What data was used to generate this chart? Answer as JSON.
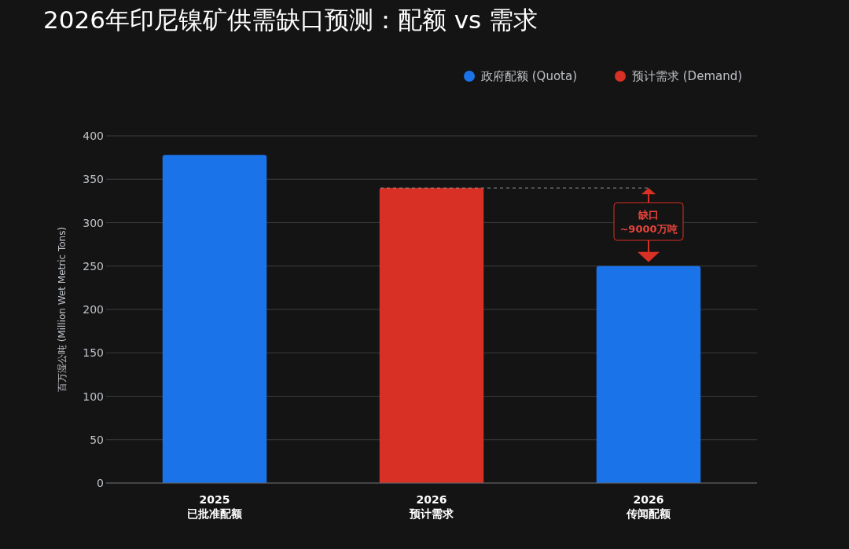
{
  "chart_data": {
    "type": "bar",
    "title": "2026年印尼镍矿供需缺口预测：配额 vs 需求",
    "ylabel": "百万湿公吨 (Million Wet Metric Tons)",
    "categories": [
      "2025\n已批准配额",
      "2026\n预计需求",
      "2026\n传闻配额"
    ],
    "series": [
      {
        "name": "政府配额 (Quota)",
        "color": "#1a73e8",
        "values": [
          378,
          null,
          250
        ]
      },
      {
        "name": "预计需求 (Demand)",
        "color": "#d93025",
        "values": [
          null,
          340,
          null
        ]
      }
    ],
    "ylim": [
      0,
      400
    ],
    "yticks": [
      0,
      50,
      100,
      150,
      200,
      250,
      300,
      350,
      400
    ],
    "grid": "y",
    "legend": "top right",
    "ref_lines": [
      {
        "axis": "y",
        "value": 340,
        "color": "#9aa0a6",
        "line_style": "dashed"
      }
    ],
    "annotations": [
      "缺口\n~9000万吨"
    ]
  }
}
